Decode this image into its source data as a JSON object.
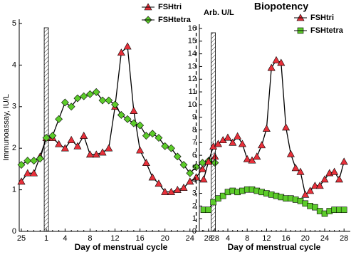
{
  "chart_data": [
    {
      "type": "line",
      "y_label": "Immunoassay, IU/L",
      "x_label": "Day of menstrual cycle",
      "legend": "upper right",
      "categories": [
        "25",
        null,
        null,
        null,
        "1",
        null,
        null,
        "4",
        null,
        null,
        null,
        "8",
        null,
        null,
        null,
        "12",
        null,
        null,
        null,
        "16",
        null,
        null,
        null,
        "20",
        null,
        null,
        null,
        "24",
        null,
        null,
        null,
        "28"
      ],
      "ylim": [
        0,
        5
      ],
      "yticks": [
        0,
        1,
        2,
        3,
        4,
        5
      ],
      "series": [
        {
          "name": "FSHtri",
          "color": "#e8303a",
          "marker": "triangle",
          "values": [
            1.2,
            1.4,
            1.4,
            1.8,
            2.25,
            2.25,
            2.1,
            2.0,
            2.2,
            2.05,
            2.3,
            1.85,
            1.85,
            1.9,
            2.0,
            3.0,
            4.3,
            4.45,
            2.9,
            1.95,
            1.65,
            1.3,
            1.15,
            0.95,
            0.95,
            1.0,
            1.05,
            1.2,
            1.3,
            1.5,
            1.7,
            1.8
          ]
        },
        {
          "name": "FSHtetra",
          "color": "#5ccc2a",
          "marker": "diamond",
          "values": [
            1.6,
            1.7,
            1.7,
            1.75,
            2.25,
            2.3,
            2.7,
            3.1,
            3.0,
            3.2,
            3.25,
            3.3,
            3.35,
            3.15,
            3.15,
            3.05,
            2.8,
            2.7,
            2.6,
            2.55,
            2.3,
            2.35,
            2.25,
            2.05,
            2.0,
            1.8,
            1.6,
            1.4,
            1.55,
            1.65,
            1.7,
            1.65
          ]
        }
      ]
    },
    {
      "type": "line",
      "title": "Biopotency",
      "y_label": "Arb. U/L",
      "x_label": "Day of menstrual cycle",
      "legend": "upper right",
      "categories": [
        null,
        "28",
        null,
        null,
        null,
        "4",
        null,
        null,
        null,
        "8",
        null,
        null,
        null,
        "12",
        null,
        null,
        null,
        "16",
        null,
        null,
        null,
        "20",
        null,
        null,
        null,
        "24",
        null,
        null,
        null,
        "28"
      ],
      "ylim": [
        0,
        16
      ],
      "yticks": [
        0,
        1,
        2,
        3,
        4,
        5,
        6,
        7,
        8,
        9,
        10,
        11,
        12,
        13,
        14,
        15,
        16
      ],
      "series": [
        {
          "name": "FSHtri",
          "color": "#e8303a",
          "marker": "triangle",
          "values": [
            4.1,
            5.5,
            6.7,
            6.9,
            7.2,
            7.4,
            7.0,
            7.5,
            6.9,
            5.7,
            5.6,
            5.9,
            6.8,
            8.1,
            12.9,
            13.5,
            13.3,
            8.2,
            6.1,
            5.0,
            4.7,
            2.9,
            3.2,
            3.6,
            3.6,
            4.1,
            4.6,
            4.7,
            4.1,
            5.5
          ]
        },
        {
          "name": "FSHtetra",
          "color": "#5ccc2a",
          "marker": "square",
          "values": [
            1.7,
            1.7,
            2.3,
            2.6,
            2.8,
            3.1,
            3.2,
            3.1,
            3.2,
            3.3,
            3.3,
            3.2,
            3.1,
            3.0,
            2.9,
            2.8,
            2.7,
            2.6,
            2.6,
            2.5,
            2.4,
            2.2,
            2.0,
            1.9,
            1.6,
            1.4,
            1.6,
            1.7,
            1.7,
            1.7
          ]
        }
      ]
    }
  ]
}
